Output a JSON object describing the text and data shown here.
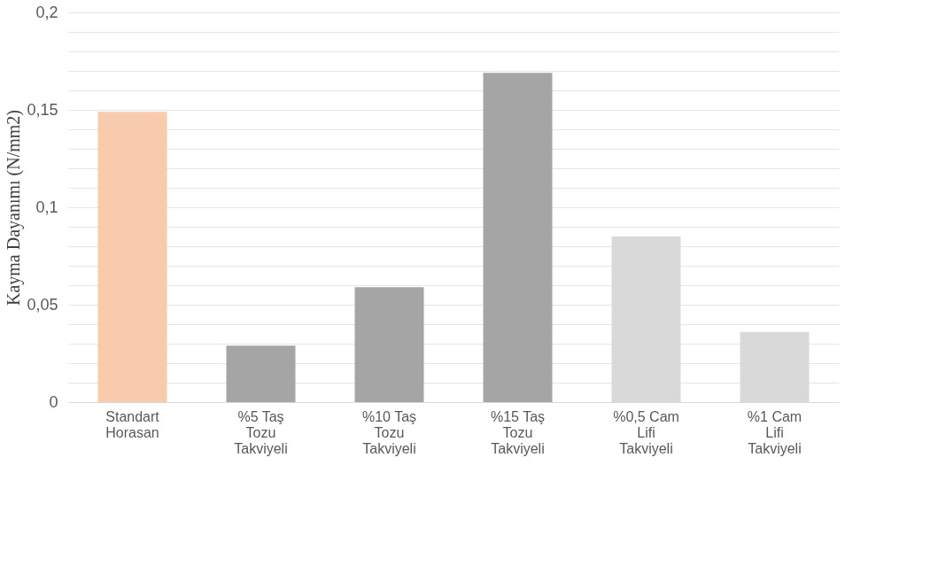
{
  "chart_data": {
    "type": "bar",
    "ylabel": "Kayma Dayanımı  (N/mm2)",
    "categories": [
      "Standart Horasan",
      "%5 Taş Tozu Takviyeli",
      "%10 Taş Tozu Takviyeli",
      "%15 Taş Tozu Takviyeli",
      "%0,5 Cam Lifi Takviyeli",
      "%1 Cam Lifi Takviyeli"
    ],
    "values": [
      0.149,
      0.029,
      0.059,
      0.169,
      0.085,
      0.036
    ],
    "colors": [
      "#f8cbad",
      "#a5a5a5",
      "#a5a5a5",
      "#a5a5a5",
      "#d9d9d9",
      "#d9d9d9"
    ],
    "ylim": [
      0,
      0.2
    ],
    "yticks": [
      0,
      {
        "value": 0.01,
        "label": null
      },
      {
        "value": 0.02,
        "label": null
      },
      {
        "value": 0.03,
        "label": null
      },
      {
        "value": 0.04,
        "label": null
      },
      {
        "value": 0.05,
        "label": "0,05"
      },
      {
        "value": 0.06,
        "label": null
      },
      {
        "value": 0.07,
        "label": null
      },
      {
        "value": 0.08,
        "label": null
      },
      {
        "value": 0.09,
        "label": null
      },
      {
        "value": 0.1,
        "label": "0,1"
      },
      {
        "value": 0.11,
        "label": null
      },
      {
        "value": 0.12,
        "label": null
      },
      {
        "value": 0.13,
        "label": null
      },
      {
        "value": 0.14,
        "label": null
      },
      {
        "value": 0.15,
        "label": "0,15"
      },
      {
        "value": 0.16,
        "label": null
      },
      {
        "value": 0.17,
        "label": null
      },
      {
        "value": 0.18,
        "label": null
      },
      {
        "value": 0.19,
        "label": null
      },
      {
        "value": 0.2,
        "label": "0,2"
      }
    ],
    "grid": true
  }
}
